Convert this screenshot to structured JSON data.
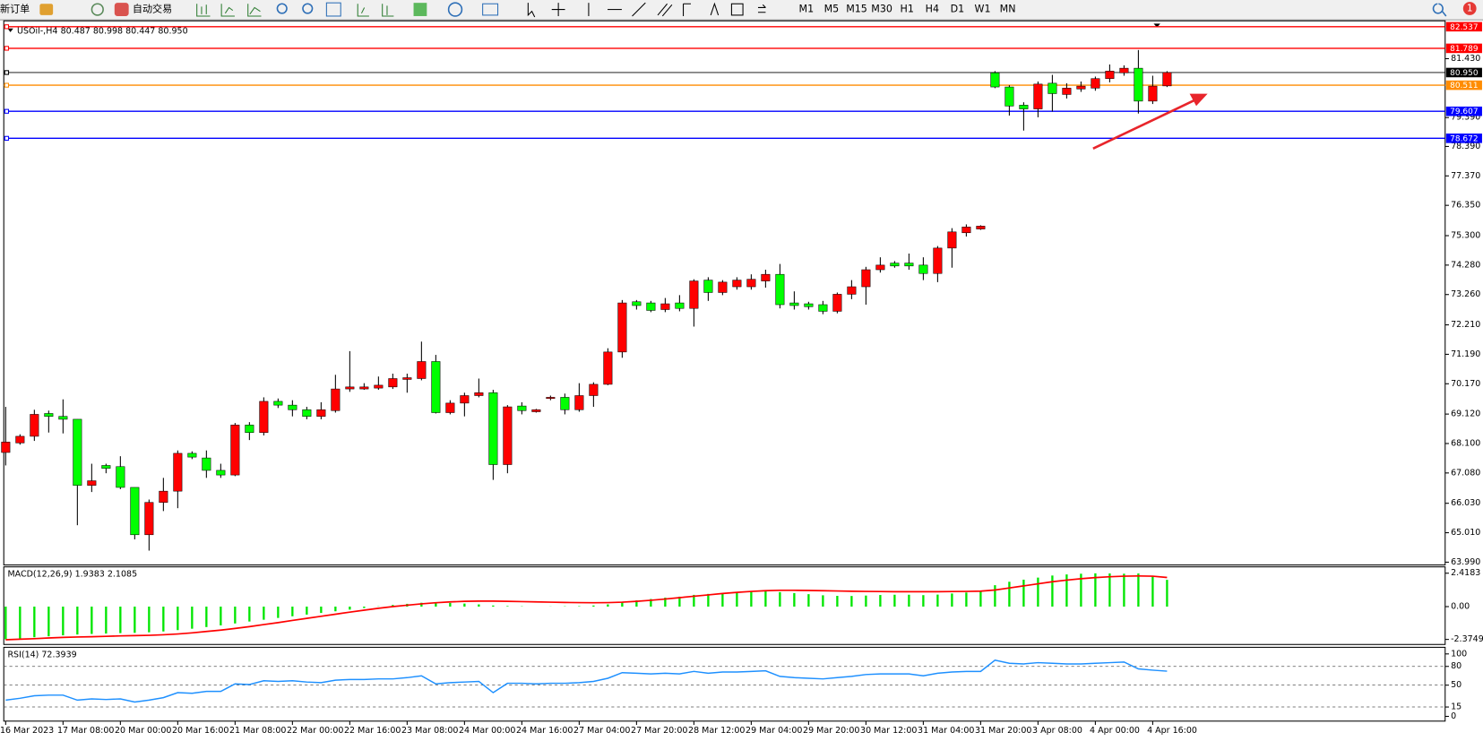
{
  "toolbar": {
    "new_order": "新订单",
    "auto_trading": "自动交易",
    "timeframes": [
      "M1",
      "M5",
      "M15",
      "M30",
      "H1",
      "H4",
      "D1",
      "W1",
      "MN"
    ],
    "alert_count": "1"
  },
  "chart_data": [
    {
      "type": "candlestick",
      "title": "USOil-,H4",
      "ohlc_label": "80.487 80.998 80.447 80.950",
      "categories": [
        "16 Mar 2023",
        null,
        null,
        null,
        "17 Mar 08:00",
        null,
        null,
        null,
        "20 Mar 00:00",
        null,
        null,
        null,
        "20 Mar 16:00",
        null,
        null,
        null,
        "21 Mar 08:00",
        null,
        null,
        null,
        "22 Mar 00:00",
        null,
        null,
        null,
        "22 Mar 16:00",
        null,
        null,
        null,
        "23 Mar 08:00",
        null,
        null,
        null,
        "24 Mar 00:00",
        null,
        null,
        null,
        "24 Mar 16:00",
        null,
        null,
        null,
        "27 Mar 04:00",
        null,
        null,
        null,
        "27 Mar 20:00",
        null,
        null,
        null,
        "28 Mar 12:00",
        null,
        null,
        null,
        "29 Mar 04:00",
        null,
        null,
        null,
        "29 Mar 20:00",
        null,
        null,
        null,
        "30 Mar 12:00",
        null,
        null,
        null,
        "31 Mar 04:00",
        null,
        null,
        null,
        "31 Mar 20:00",
        null,
        null,
        null,
        "3 Apr 08:00",
        null,
        null,
        null,
        "4 Apr 00:00",
        null,
        null,
        null,
        "4 Apr 16:00",
        null
      ],
      "open": [
        67.79,
        68.12,
        68.35,
        69.14,
        69.04,
        68.94,
        66.65,
        67.34,
        67.3,
        66.58,
        64.94,
        66.06,
        66.45,
        67.76,
        67.6,
        67.17,
        67.01,
        68.74,
        68.48,
        69.56,
        69.43,
        69.27,
        69.04,
        69.24,
        69.99,
        69.99,
        70.02,
        70.06,
        70.32,
        70.35,
        70.94,
        69.17,
        69.5,
        69.76,
        69.86,
        67.37,
        69.4,
        69.2,
        69.66,
        69.7,
        69.27,
        69.76,
        70.15,
        71.27,
        73.01,
        72.97,
        72.74,
        72.97,
        72.78,
        73.76,
        73.33,
        73.53,
        73.53,
        73.73,
        73.96,
        72.97,
        72.94,
        72.91,
        72.68,
        73.27,
        73.53,
        74.12,
        74.35,
        74.35,
        74.28,
        73.99,
        74.87,
        75.4,
        75.53,
        80.94,
        80.45,
        79.82,
        79.69,
        80.58,
        80.19,
        80.38,
        80.41,
        80.74,
        80.94,
        81.1,
        79.96,
        80.487
      ],
      "high": [
        69.37,
        68.42,
        69.27,
        69.24,
        69.63,
        68.94,
        67.4,
        67.4,
        67.66,
        66.58,
        66.16,
        66.91,
        67.86,
        67.83,
        67.86,
        67.4,
        68.81,
        68.84,
        69.7,
        69.66,
        69.6,
        69.37,
        69.53,
        70.48,
        71.3,
        70.19,
        70.42,
        70.52,
        70.52,
        71.63,
        71.17,
        69.6,
        69.86,
        70.35,
        69.96,
        69.43,
        69.53,
        69.3,
        69.76,
        69.83,
        70.19,
        70.22,
        71.4,
        73.07,
        73.07,
        73.04,
        73.14,
        73.24,
        73.79,
        73.86,
        73.76,
        73.86,
        73.96,
        74.12,
        74.32,
        73.37,
        73.01,
        73.04,
        73.33,
        73.76,
        74.22,
        74.55,
        74.42,
        74.68,
        74.55,
        74.94,
        75.56,
        75.69,
        75.66,
        81.0,
        80.51,
        79.92,
        80.64,
        80.87,
        80.58,
        80.64,
        80.81,
        81.23,
        81.2,
        81.73,
        80.84,
        80.998
      ],
      "low": [
        67.34,
        68.06,
        68.19,
        68.48,
        68.45,
        65.27,
        66.42,
        67.07,
        66.52,
        64.78,
        64.39,
        65.76,
        65.86,
        67.56,
        66.91,
        66.91,
        66.97,
        68.22,
        68.38,
        69.33,
        69.04,
        68.94,
        68.94,
        69.17,
        69.89,
        69.96,
        69.96,
        69.99,
        69.86,
        70.29,
        69.14,
        69.11,
        69.04,
        69.7,
        66.84,
        67.07,
        69.11,
        69.17,
        69.6,
        69.11,
        69.2,
        69.37,
        70.12,
        71.07,
        72.74,
        72.65,
        72.65,
        72.68,
        72.15,
        73.04,
        73.24,
        73.43,
        73.43,
        73.5,
        72.78,
        72.74,
        72.74,
        72.58,
        72.61,
        73.1,
        72.91,
        74.02,
        74.19,
        74.12,
        73.76,
        73.69,
        74.19,
        75.27,
        75.5,
        80.41,
        79.46,
        78.94,
        79.4,
        79.6,
        80.05,
        80.28,
        80.32,
        80.61,
        80.84,
        79.53,
        79.86,
        80.447
      ],
      "close": [
        68.15,
        68.35,
        69.11,
        69.04,
        68.94,
        66.65,
        66.81,
        67.24,
        66.58,
        64.94,
        66.06,
        66.45,
        67.76,
        67.63,
        67.17,
        67.01,
        68.74,
        68.48,
        69.56,
        69.43,
        69.27,
        69.04,
        69.27,
        69.99,
        70.06,
        70.06,
        70.12,
        70.35,
        70.38,
        70.94,
        69.17,
        69.5,
        69.76,
        69.86,
        67.37,
        69.37,
        69.24,
        69.27,
        69.7,
        69.27,
        69.76,
        70.15,
        71.27,
        72.97,
        72.88,
        72.71,
        72.94,
        72.78,
        73.73,
        73.33,
        73.69,
        73.76,
        73.79,
        73.96,
        72.91,
        72.88,
        72.84,
        72.68,
        73.27,
        73.53,
        74.12,
        74.28,
        74.25,
        74.25,
        73.99,
        74.87,
        75.43,
        75.6,
        75.63,
        80.45,
        79.79,
        79.69,
        80.55,
        80.22,
        80.41,
        80.48,
        80.74,
        81.0,
        81.1,
        79.96,
        80.48,
        80.95
      ],
      "up_color": "#ff0000",
      "down_color": "#00ff00",
      "wick_color": "#000000",
      "ylim": [
        63.893,
        82.741
      ],
      "yticks": [
        {
          "value": 81.43,
          "label": "81.430"
        },
        {
          "value": 79.39,
          "label": "79.390"
        },
        {
          "value": 78.39,
          "label": "78.390"
        },
        {
          "value": 77.37,
          "label": "77.370"
        },
        {
          "value": 76.35,
          "label": "76.350"
        },
        {
          "value": 75.3,
          "label": "75.300"
        },
        {
          "value": 74.28,
          "label": "74.280"
        },
        {
          "value": 73.26,
          "label": "73.260"
        },
        {
          "value": 72.21,
          "label": "72.210"
        },
        {
          "value": 71.19,
          "label": "71.190"
        },
        {
          "value": 70.17,
          "label": "70.170"
        },
        {
          "value": 69.12,
          "label": "69.120"
        },
        {
          "value": 68.1,
          "label": "68.100"
        },
        {
          "value": 67.08,
          "label": "67.080"
        },
        {
          "value": 66.03,
          "label": "66.030"
        },
        {
          "value": 65.01,
          "label": "65.010"
        },
        {
          "value": 63.99,
          "label": "63.990"
        }
      ],
      "price_lines": [
        {
          "value": 82.537,
          "label": "82.537",
          "color": "#ff0000"
        },
        {
          "value": 81.789,
          "label": "81.789",
          "color": "#ff0000"
        },
        {
          "value": 80.95,
          "label": "80.950",
          "color": "#000000"
        },
        {
          "value": 80.511,
          "label": "80.511",
          "color": "#ff8c00"
        },
        {
          "value": 79.607,
          "label": "79.607",
          "color": "#0000ff"
        },
        {
          "value": 78.672,
          "label": "78.672",
          "color": "#0000ff"
        }
      ]
    },
    {
      "type": "macd",
      "title": "MACD(12,26,9) 1.9383 2.1085",
      "histogram": [
        -2.37,
        -2.3,
        -2.22,
        -2.15,
        -2.08,
        -2.02,
        -1.98,
        -1.95,
        -1.92,
        -1.9,
        -1.86,
        -1.8,
        -1.7,
        -1.6,
        -1.48,
        -1.36,
        -1.22,
        -1.08,
        -0.95,
        -0.82,
        -0.7,
        -0.58,
        -0.46,
        -0.34,
        -0.22,
        -0.1,
        0.02,
        0.12,
        0.2,
        0.28,
        0.3,
        0.27,
        0.22,
        0.16,
        0.08,
        0.04,
        0.02,
        0.0,
        0.01,
        0.02,
        0.03,
        0.08,
        0.16,
        0.3,
        0.45,
        0.55,
        0.65,
        0.72,
        0.85,
        0.92,
        0.98,
        1.03,
        1.07,
        1.12,
        1.05,
        0.98,
        0.9,
        0.82,
        0.78,
        0.77,
        0.8,
        0.84,
        0.86,
        0.86,
        0.83,
        0.87,
        0.95,
        1.02,
        1.08,
        1.55,
        1.8,
        1.95,
        2.1,
        2.25,
        2.33,
        2.38,
        2.41,
        2.4,
        2.38,
        2.4,
        2.2,
        1.9383
      ],
      "signal": [
        -2.4,
        -2.36,
        -2.32,
        -2.27,
        -2.23,
        -2.2,
        -2.18,
        -2.15,
        -2.12,
        -2.1,
        -2.08,
        -2.04,
        -1.98,
        -1.9,
        -1.8,
        -1.7,
        -1.58,
        -1.45,
        -1.3,
        -1.16,
        -1.0,
        -0.85,
        -0.7,
        -0.55,
        -0.4,
        -0.26,
        -0.12,
        0.0,
        0.1,
        0.2,
        0.28,
        0.34,
        0.38,
        0.4,
        0.4,
        0.38,
        0.36,
        0.34,
        0.32,
        0.3,
        0.29,
        0.28,
        0.29,
        0.32,
        0.38,
        0.46,
        0.55,
        0.65,
        0.75,
        0.85,
        0.95,
        1.03,
        1.1,
        1.15,
        1.18,
        1.18,
        1.17,
        1.15,
        1.13,
        1.11,
        1.1,
        1.09,
        1.08,
        1.08,
        1.08,
        1.08,
        1.09,
        1.1,
        1.12,
        1.2,
        1.35,
        1.5,
        1.65,
        1.8,
        1.92,
        2.02,
        2.1,
        2.16,
        2.2,
        2.22,
        2.2,
        2.1085
      ],
      "histogram_color": "#00e600",
      "signal_color": "#ff0000",
      "ylim": [
        -2.74,
        2.877
      ],
      "yticks": [
        2.4183,
        {
          "value": 0,
          "label": "0.00"
        },
        -2.3749
      ]
    },
    {
      "type": "line",
      "title": "RSI(14) 72.3939",
      "values": [
        26,
        29,
        33,
        34,
        34,
        26,
        28,
        27,
        28,
        23,
        26,
        30,
        38,
        37,
        40,
        40,
        52,
        51,
        57,
        56,
        57,
        55,
        54,
        58,
        59,
        59,
        60,
        60,
        62,
        65,
        52,
        54,
        55,
        56,
        38,
        53,
        53,
        52,
        53,
        53,
        54,
        56,
        61,
        70,
        69,
        68,
        69,
        68,
        72,
        69,
        71,
        71,
        72,
        73,
        64,
        62,
        61,
        60,
        62,
        64,
        67,
        68,
        68,
        68,
        65,
        69,
        71,
        72,
        72,
        90,
        85,
        84,
        86,
        85,
        84,
        84,
        85,
        86,
        87,
        76,
        74,
        72.3939
      ],
      "color": "#1e90ff",
      "ylim": [
        -7.6,
        110.6
      ],
      "yticks": [
        100,
        80,
        50,
        15,
        0
      ],
      "levels": [
        80,
        50,
        15
      ]
    }
  ]
}
